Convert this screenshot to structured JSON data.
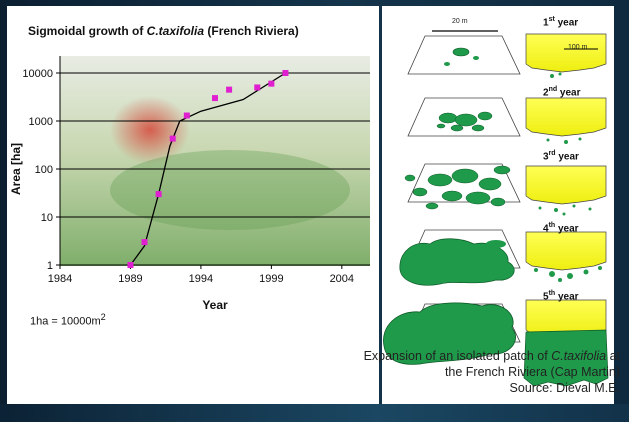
{
  "chart_data": {
    "type": "scatter",
    "title_prefix": "Sigmoidal growth of ",
    "title_species": "C.taxifolia",
    "title_suffix": " (French Riviera)",
    "xlabel": "Year",
    "ylabel": "Area [ha]",
    "xlim": [
      1984,
      2006
    ],
    "ylim": [
      1,
      10000
    ],
    "yscale": "log",
    "x_ticks": [
      1984,
      1989,
      1994,
      1999,
      2004
    ],
    "y_ticks": [
      1,
      10,
      100,
      1000,
      10000
    ],
    "y_tick_labels": [
      "1",
      "10",
      "100",
      "1000",
      "10000"
    ],
    "grid": "horizontal",
    "marker_color": "#e020d0",
    "series": [
      {
        "points": [
          {
            "x": 1989,
            "y": 1
          },
          {
            "x": 1990,
            "y": 3
          },
          {
            "x": 1991,
            "y": 30
          },
          {
            "x": 1992,
            "y": 430
          },
          {
            "x": 1993,
            "y": 1300
          },
          {
            "x": 1995,
            "y": 3000
          },
          {
            "x": 1996,
            "y": 4500
          },
          {
            "x": 1998,
            "y": 5000
          },
          {
            "x": 1999,
            "y": 6000
          },
          {
            "x": 2000,
            "y": 10000
          }
        ],
        "trend": [
          {
            "x": 1989,
            "y": 1
          },
          {
            "x": 1990,
            "y": 2.5
          },
          {
            "x": 1991,
            "y": 30
          },
          {
            "x": 1991.8,
            "y": 300
          },
          {
            "x": 1992.5,
            "y": 1000
          },
          {
            "x": 1994,
            "y": 1600
          },
          {
            "x": 1997,
            "y": 2800
          },
          {
            "x": 2000,
            "y": 10000
          }
        ]
      }
    ]
  },
  "note": {
    "text": "1ha = 10000m",
    "superscript": "2"
  },
  "caption": {
    "line1_prefix": "Expansion of an isolated patch of ",
    "line1_species": "C.taxifolia",
    "line1_suffix": " at",
    "line2": "the French Riviera (Cap Martin)",
    "line3": "Source: Dieval M.E."
  },
  "diagram": {
    "scale_top": "20 m",
    "scale_coast": "100 m",
    "years": [
      {
        "num": "1",
        "sup": "st",
        "word": "year"
      },
      {
        "num": "2",
        "sup": "nd",
        "word": "year"
      },
      {
        "num": "3",
        "sup": "rd",
        "word": "year"
      },
      {
        "num": "4",
        "sup": "th",
        "word": "year"
      },
      {
        "num": "5",
        "sup": "th",
        "word": "year"
      }
    ],
    "patch_color": "#1f9a4a",
    "coast_color": "#ffff2a"
  }
}
